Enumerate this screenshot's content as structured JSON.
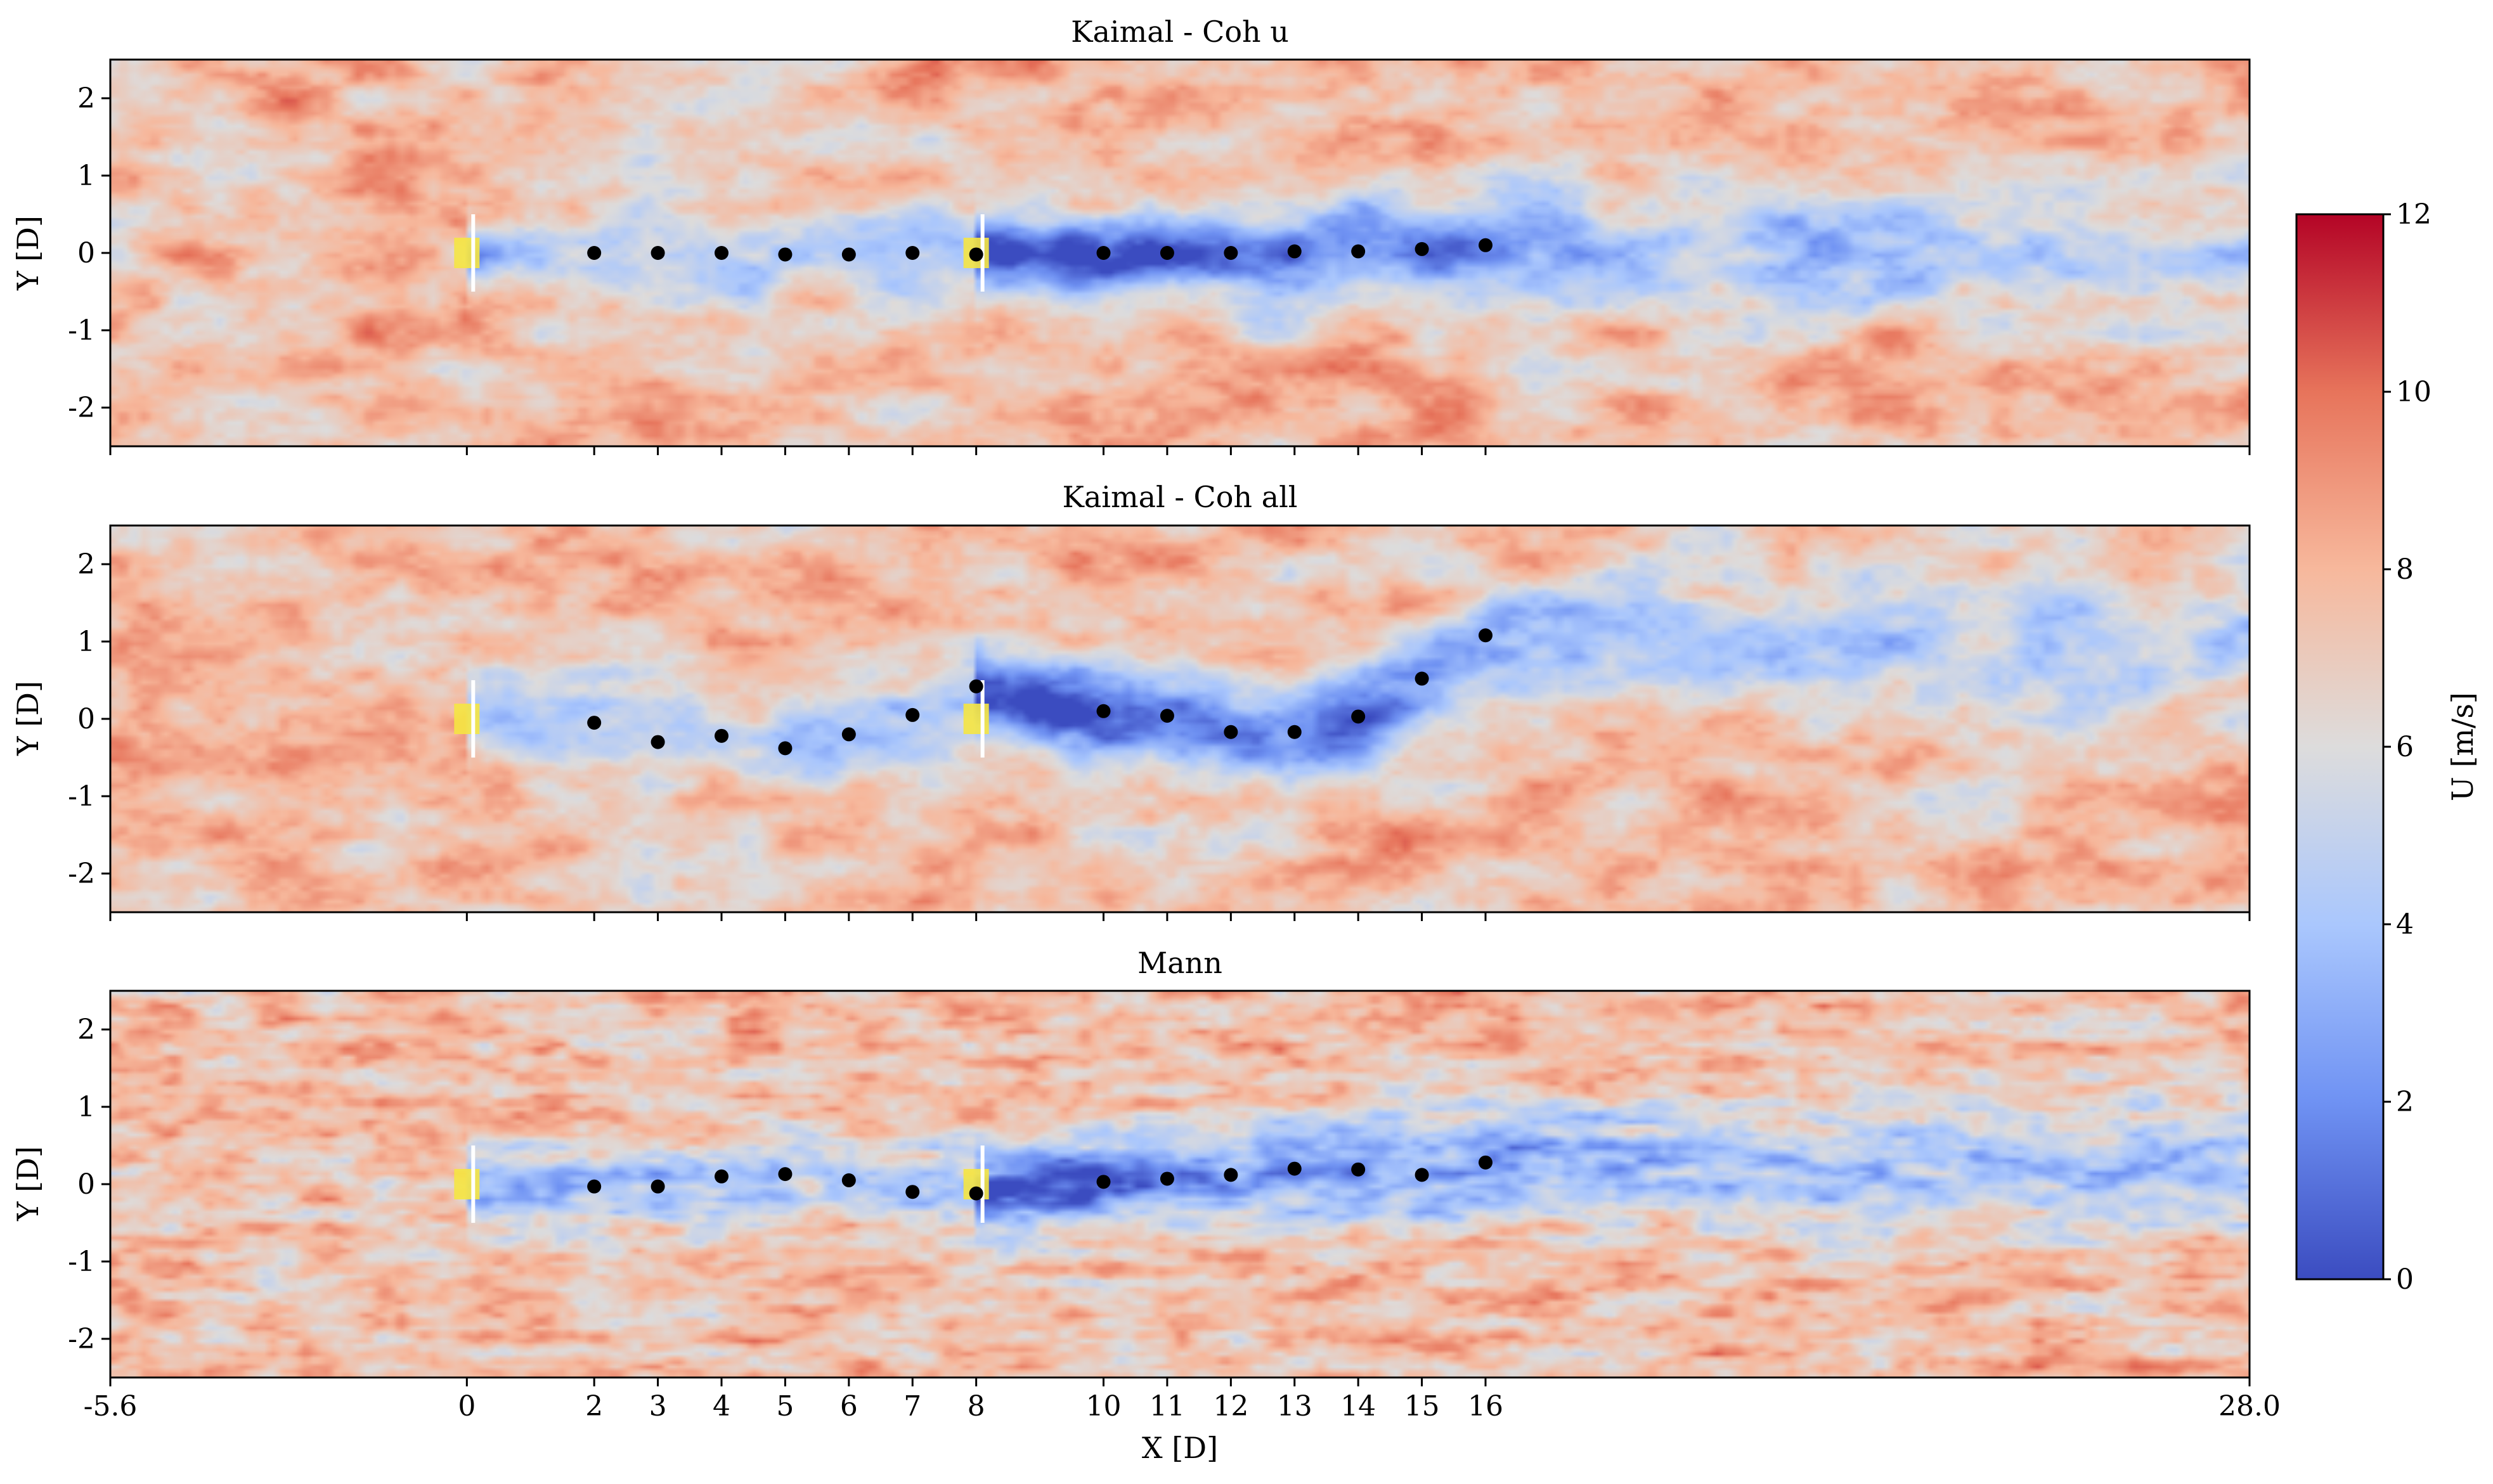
{
  "figure": {
    "xlabel": "X [D]",
    "ylabel": "Y [D]",
    "xlim": [
      -5.6,
      28.0
    ],
    "ylim": [
      -2.5,
      2.5
    ],
    "xticks": [
      -5.6,
      0,
      2,
      3,
      4,
      5,
      6,
      7,
      8,
      10,
      11,
      12,
      13,
      14,
      15,
      16,
      28.0
    ],
    "xtick_labels": [
      "-5.6",
      "0",
      "2",
      "3",
      "4",
      "5",
      "6",
      "7",
      "8",
      "10",
      "11",
      "12",
      "13",
      "14",
      "15",
      "16",
      "28.0"
    ],
    "yticks": [
      2,
      1,
      0,
      -1,
      -2
    ],
    "ytick_labels": [
      "2",
      "1",
      "0",
      "-1",
      "-2"
    ],
    "colorbar": {
      "label": "U [m/s]",
      "colormap": "coolwarm",
      "range": [
        0,
        12
      ],
      "ticks": [
        0,
        2,
        4,
        6,
        8,
        10,
        12
      ],
      "tick_labels": [
        "0",
        "2",
        "4",
        "6",
        "8",
        "10",
        "12"
      ],
      "colors": [
        "#3b4cc0",
        "#6f92f3",
        "#aac7fd",
        "#dddcdc",
        "#f7b89c",
        "#e7745b",
        "#b40426"
      ]
    },
    "turbines": [
      {
        "x": 0,
        "y": 0
      },
      {
        "x": 8,
        "y": 0
      }
    ],
    "turbine_color": "#ffffff",
    "hub_marker_color": "#f5e642",
    "wake_center_color": "#000000"
  },
  "chart_data": [
    {
      "type": "heatmap",
      "title": "Kaimal - Coh u",
      "quantity": "U [m/s]",
      "field_seed": 7,
      "wake_centers": {
        "x": [
          2,
          3,
          4,
          5,
          6,
          7,
          8,
          10,
          11,
          12,
          13,
          14,
          15,
          16
        ],
        "y": [
          0.0,
          0.0,
          0.0,
          -0.02,
          -0.02,
          0.0,
          -0.02,
          0.0,
          0.0,
          0.0,
          0.02,
          0.02,
          0.05,
          0.1
        ]
      }
    },
    {
      "type": "heatmap",
      "title": "Kaimal - Coh all",
      "quantity": "U [m/s]",
      "field_seed": 19,
      "wake_centers": {
        "x": [
          2,
          3,
          4,
          5,
          6,
          7,
          8,
          10,
          11,
          12,
          13,
          14,
          15,
          16
        ],
        "y": [
          -0.05,
          -0.3,
          -0.22,
          -0.38,
          -0.2,
          0.05,
          0.42,
          0.1,
          0.04,
          -0.17,
          -0.17,
          0.03,
          0.52,
          1.08
        ]
      }
    },
    {
      "type": "heatmap",
      "title": "Mann",
      "quantity": "U [m/s]",
      "field_seed": 31,
      "wake_centers": {
        "x": [
          2,
          3,
          4,
          5,
          6,
          7,
          8,
          10,
          11,
          12,
          13,
          14,
          15,
          16
        ],
        "y": [
          -0.03,
          -0.03,
          0.1,
          0.13,
          0.05,
          -0.1,
          -0.12,
          0.03,
          0.07,
          0.12,
          0.2,
          0.19,
          0.12,
          0.28
        ]
      }
    }
  ]
}
